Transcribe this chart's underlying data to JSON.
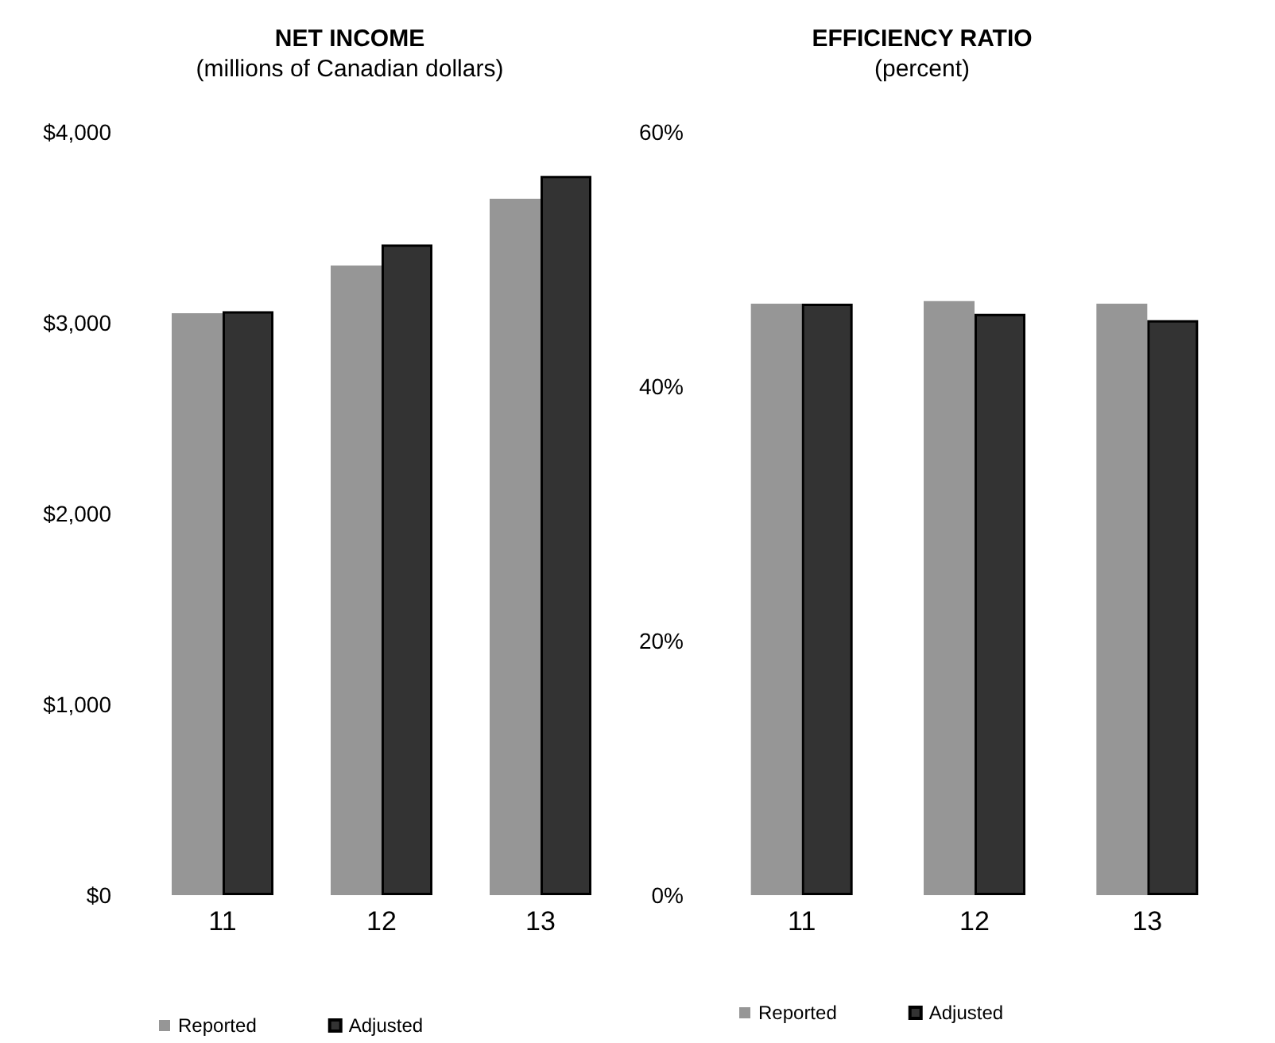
{
  "chart_data": [
    {
      "type": "bar",
      "title": "NET INCOME",
      "subtitle": "(millions of Canadian dollars)",
      "categories": [
        "11",
        "12",
        "13"
      ],
      "series": [
        {
          "name": "Reported",
          "color": "#969696",
          "values": [
            3050,
            3300,
            3650
          ]
        },
        {
          "name": "Adjusted",
          "color": "#333333",
          "values": [
            3060,
            3410,
            3770
          ]
        }
      ],
      "ylim": [
        0,
        4000
      ],
      "yticks": [
        {
          "value": 0,
          "label": "$0"
        },
        {
          "value": 1000,
          "label": "$1,000"
        },
        {
          "value": 2000,
          "label": "$2,000"
        },
        {
          "value": 3000,
          "label": "$3,000"
        },
        {
          "value": 4000,
          "label": "$4,000"
        }
      ],
      "grid": false,
      "legend": "bottom"
    },
    {
      "type": "bar",
      "title": "EFFICIENCY RATIO",
      "subtitle": "(percent)",
      "categories": [
        "11",
        "12",
        "13"
      ],
      "series": [
        {
          "name": "Reported",
          "color": "#969696",
          "values": [
            46.5,
            46.7,
            46.5
          ]
        },
        {
          "name": "Adjusted",
          "color": "#333333",
          "values": [
            46.5,
            45.7,
            45.2
          ]
        }
      ],
      "ylim": [
        0,
        60
      ],
      "yticks": [
        {
          "value": 0,
          "label": "0%"
        },
        {
          "value": 20,
          "label": "20%"
        },
        {
          "value": 40,
          "label": "40%"
        },
        {
          "value": 60,
          "label": "60%"
        }
      ],
      "grid": false,
      "legend": "bottom"
    }
  ]
}
